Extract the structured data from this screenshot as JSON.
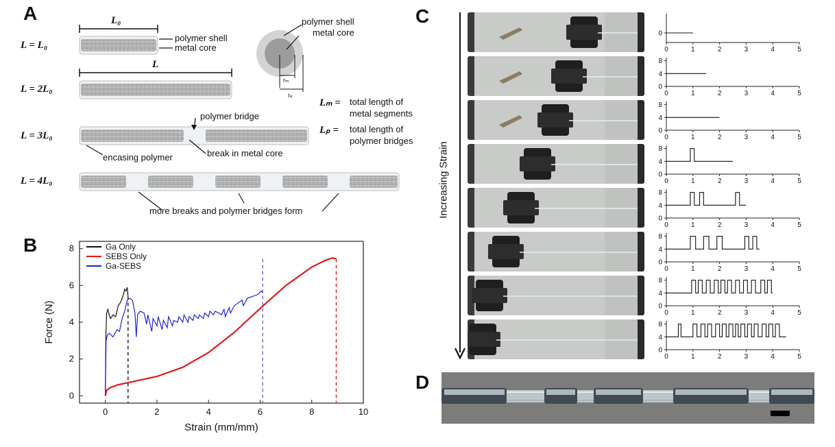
{
  "panels": {
    "A": {
      "letter": "A",
      "L0_dim": "L₀",
      "L_dim": "L",
      "rows": [
        "L = L₀",
        "L = 2L₀",
        "L = 3L₀",
        "L = 4L₀"
      ],
      "callouts": {
        "polymer_shell": "polymer shell",
        "metal_core": "metal core",
        "polymer_bridge": "polymer bridge",
        "encasing_polymer": "encasing polymer",
        "break": "break in metal core",
        "more_breaks": "more breaks and polymer bridges form"
      },
      "cross_section": {
        "polymer_shell": "polymer shell",
        "metal_core": "metal core",
        "rm": "rₘ",
        "rf": "rₑ"
      },
      "definitions": [
        {
          "symbol": "Lₘ =",
          "text": "total length of metal segments"
        },
        {
          "symbol": "Lₚ =",
          "text": "total length of polymer bridges"
        }
      ]
    },
    "B": {
      "letter": "B"
    },
    "C": {
      "letter": "C",
      "arrow_label": "Increasing Strain"
    },
    "D": {
      "letter": "D"
    }
  },
  "chart_data": [
    {
      "panel": "B",
      "type": "line",
      "xlabel": "Strain (mm/mm)",
      "ylabel": "Force (N)",
      "xlim": [
        -1,
        10
      ],
      "ylim": [
        -0.4,
        8.4
      ],
      "xticks": [
        0,
        2,
        4,
        6,
        8,
        10
      ],
      "yticks": [
        0,
        2,
        4,
        6,
        8
      ],
      "legend_position": "top-left",
      "series": [
        {
          "name": "Ga Only",
          "color": "#111111",
          "x": [
            0,
            0.02,
            0.05,
            0.1,
            0.15,
            0.2,
            0.3,
            0.4,
            0.5,
            0.6,
            0.7,
            0.75,
            0.8,
            0.85,
            0.88
          ],
          "y": [
            0,
            3.2,
            4.5,
            4.7,
            4.4,
            4.2,
            4.4,
            4.3,
            4.9,
            5.1,
            5.5,
            5.8,
            5.7,
            5.9,
            5.4
          ]
        },
        {
          "name": "SEBS Only",
          "color": "#e01919",
          "x": [
            0,
            0.05,
            0.2,
            0.5,
            1,
            2,
            3,
            4,
            5,
            6,
            7,
            8,
            8.5,
            8.8,
            8.95
          ],
          "y": [
            0,
            0.3,
            0.45,
            0.6,
            0.75,
            1.05,
            1.55,
            2.35,
            3.45,
            4.75,
            6.0,
            7.0,
            7.35,
            7.5,
            7.45
          ]
        },
        {
          "name": "Ga-SEBS",
          "color": "#1f1fd8",
          "x": [
            0,
            0.03,
            0.08,
            0.15,
            0.3,
            0.45,
            0.55,
            0.65,
            0.75,
            0.85,
            0.95,
            1.05,
            1.15,
            1.2,
            1.25,
            1.35,
            1.5,
            1.6,
            1.65,
            1.8,
            1.85,
            2.0,
            2.05,
            2.2,
            2.25,
            2.4,
            2.45,
            2.6,
            2.65,
            2.8,
            2.85,
            3.0,
            3.05,
            3.2,
            3.25,
            3.4,
            3.45,
            3.6,
            3.65,
            3.8,
            3.85,
            4.0,
            4.05,
            4.2,
            4.25,
            4.4,
            4.5,
            4.6,
            4.65,
            4.8,
            4.85,
            5.0,
            5.1,
            5.3,
            5.35,
            5.5,
            5.7,
            5.9,
            6.05,
            6.1
          ],
          "y": [
            0,
            3.0,
            3.3,
            3.4,
            3.2,
            3.6,
            3.5,
            4.2,
            4.6,
            5.2,
            5.3,
            5.2,
            4.5,
            3.2,
            4.4,
            4.6,
            4.5,
            3.9,
            4.4,
            3.5,
            4.2,
            3.8,
            4.3,
            3.6,
            4.1,
            3.7,
            4.3,
            3.8,
            4.1,
            4.0,
            4.3,
            4.0,
            4.4,
            4.0,
            4.3,
            4.1,
            4.4,
            4.2,
            4.4,
            4.2,
            4.5,
            4.3,
            4.6,
            4.4,
            4.6,
            4.5,
            4.4,
            4.7,
            4.3,
            4.8,
            4.5,
            4.9,
            5.0,
            5.2,
            4.9,
            5.3,
            5.4,
            5.5,
            5.7,
            5.6
          ]
        }
      ],
      "fracture_markers": [
        {
          "x": 0.88,
          "color": "#111111"
        },
        {
          "x": 6.1,
          "color": "#6a6ae0"
        },
        {
          "x": 8.95,
          "color": "#e01919"
        }
      ]
    },
    {
      "panel": "C",
      "type": "line",
      "xlim": [
        0,
        5
      ],
      "xticks": [
        0,
        1,
        2,
        3,
        4,
        5
      ],
      "plots": [
        {
          "yticks": [
            0
          ],
          "ylim": [
            -4,
            8
          ],
          "segments": [
            [
              0,
              1
            ]
          ],
          "pulses": []
        },
        {
          "yticks": [
            0,
            4,
            8
          ],
          "ylim": [
            0,
            9
          ],
          "segments": [
            [
              0,
              1.5
            ]
          ],
          "pulses": []
        },
        {
          "yticks": [
            0,
            4,
            8
          ],
          "ylim": [
            0,
            9
          ],
          "segments": [
            [
              0,
              2
            ]
          ],
          "pulses": []
        },
        {
          "yticks": [
            0,
            4,
            8
          ],
          "ylim": [
            0,
            9
          ],
          "segments": [
            [
              0,
              2.5
            ]
          ],
          "pulses": [
            [
              0.9,
              1.05
            ]
          ]
        },
        {
          "yticks": [
            0,
            4,
            8
          ],
          "ylim": [
            0,
            9
          ],
          "segments": [
            [
              0,
              3
            ]
          ],
          "pulses": [
            [
              0.9,
              1.05
            ],
            [
              1.25,
              1.4
            ],
            [
              2.6,
              2.75
            ]
          ]
        },
        {
          "yticks": [
            0,
            4,
            8
          ],
          "ylim": [
            0,
            9
          ],
          "segments": [
            [
              0,
              3.5
            ]
          ],
          "pulses": [
            [
              0.9,
              1.1
            ],
            [
              1.4,
              1.6
            ],
            [
              1.9,
              2.1
            ],
            [
              2.95,
              3.1
            ],
            [
              3.25,
              3.4
            ]
          ]
        },
        {
          "yticks": [
            0,
            4,
            8
          ],
          "ylim": [
            0,
            9
          ],
          "segments": [
            [
              0,
              4
            ]
          ],
          "pulses": [
            [
              0.95,
              1.1
            ],
            [
              1.2,
              1.35
            ],
            [
              1.5,
              1.65
            ],
            [
              1.8,
              1.95
            ],
            [
              2.05,
              2.2
            ],
            [
              2.3,
              2.45
            ],
            [
              2.6,
              2.75
            ],
            [
              2.9,
              3.05
            ],
            [
              3.2,
              3.35
            ],
            [
              3.55,
              3.7
            ],
            [
              3.8,
              3.95
            ]
          ]
        },
        {
          "yticks": [
            0,
            4,
            8
          ],
          "ylim": [
            0,
            9
          ],
          "segments": [
            [
              0,
              4.5
            ]
          ],
          "pulses": [
            [
              0.45,
              0.55
            ],
            [
              1.0,
              1.15
            ],
            [
              1.3,
              1.45
            ],
            [
              1.55,
              1.7
            ],
            [
              1.85,
              2.0
            ],
            [
              2.1,
              2.25
            ],
            [
              2.35,
              2.5
            ],
            [
              2.6,
              2.7
            ],
            [
              2.8,
              2.95
            ],
            [
              3.05,
              3.2
            ],
            [
              3.3,
              3.45
            ],
            [
              3.6,
              3.75
            ],
            [
              3.85,
              4.0
            ],
            [
              4.1,
              4.25
            ]
          ]
        }
      ]
    }
  ]
}
